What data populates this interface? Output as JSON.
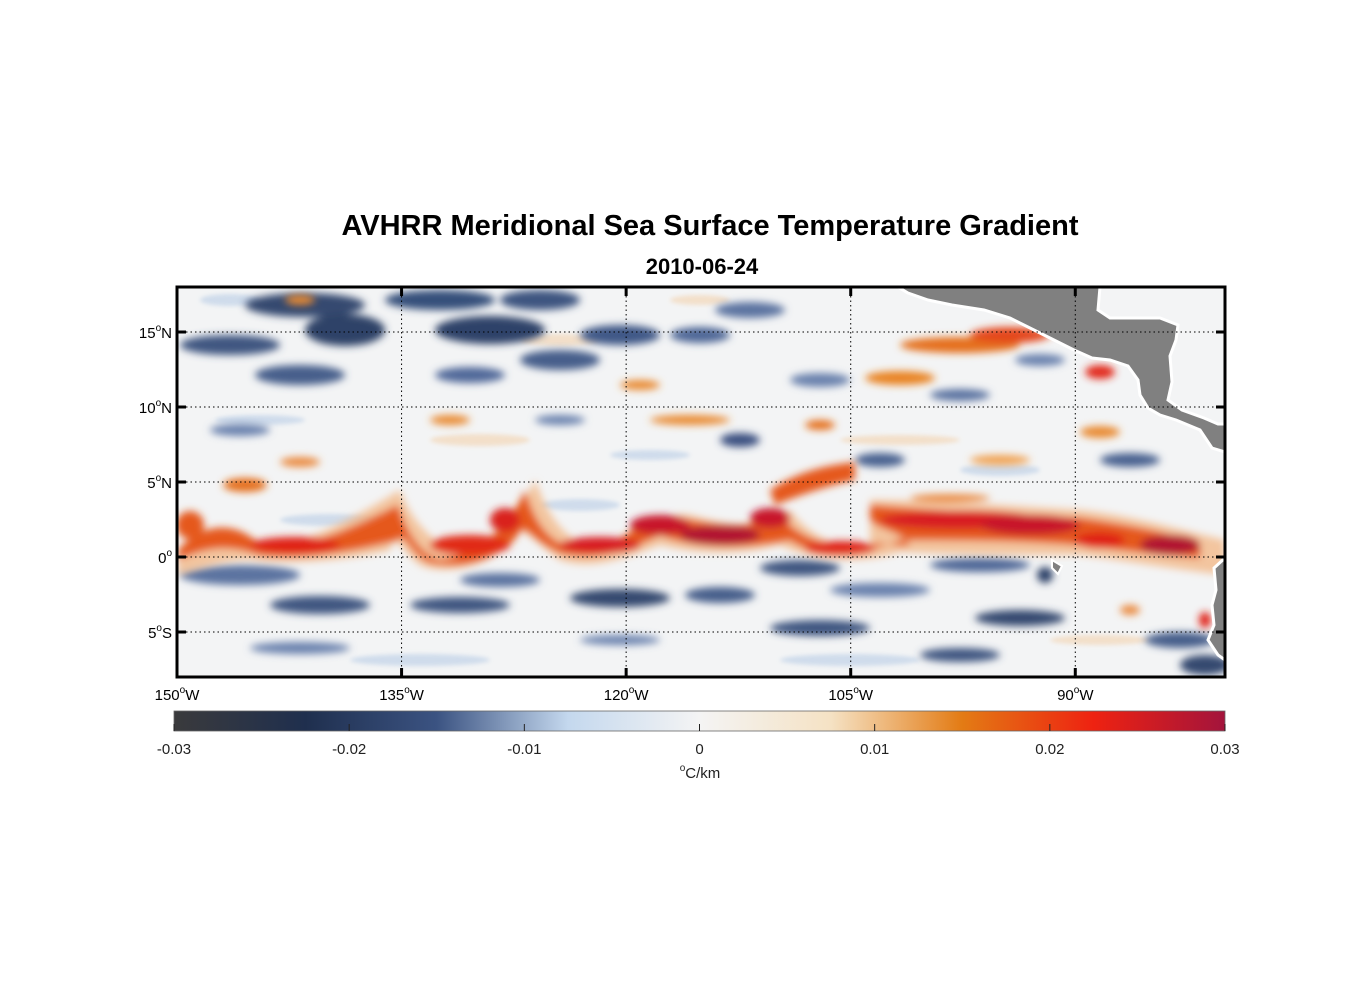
{
  "chart_data": {
    "type": "heatmap",
    "title": "AVHRR Meridional Sea Surface Temperature Gradient",
    "subtitle": "2010-06-24",
    "x_range_deg": [
      -150,
      -80
    ],
    "y_range_deg": [
      -8,
      18
    ],
    "x_ticks": [
      {
        "value": -150,
        "num": "150",
        "deg": "o",
        "hemi": "W"
      },
      {
        "value": -135,
        "num": "135",
        "deg": "o",
        "hemi": "W"
      },
      {
        "value": -120,
        "num": "120",
        "deg": "o",
        "hemi": "W"
      },
      {
        "value": -105,
        "num": "105",
        "deg": "o",
        "hemi": "W"
      },
      {
        "value": -90,
        "num": "90",
        "deg": "o",
        "hemi": "W"
      }
    ],
    "y_ticks": [
      {
        "value": 15,
        "num": "15",
        "deg": "o",
        "hemi": "N"
      },
      {
        "value": 10,
        "num": "10",
        "deg": "o",
        "hemi": "N"
      },
      {
        "value": 5,
        "num": "5",
        "deg": "o",
        "hemi": "N"
      },
      {
        "value": 0,
        "num": "0",
        "deg": "o",
        "hemi": ""
      },
      {
        "value": -5,
        "num": "5",
        "deg": "o",
        "hemi": "S"
      }
    ],
    "colorbar": {
      "range": [
        -0.03,
        0.03
      ],
      "ticks": [
        "-0.03",
        "-0.02",
        "-0.01",
        "0",
        "0.01",
        "0.02",
        "0.03"
      ],
      "tick_values": [
        -0.03,
        -0.02,
        -0.01,
        0,
        0.01,
        0.02,
        0.03
      ],
      "unit_deg": "o",
      "unit_text": "C/km",
      "colors": [
        "#3a3a3c",
        "#1f2f4e",
        "#3b5382",
        "#c4d8ee",
        "#f4f4f4",
        "#f5e2c4",
        "#e37b14",
        "#ee2211",
        "#a3143c"
      ]
    },
    "land_color": "#808080",
    "features": [
      {
        "name": "equatorial-front-trough-1",
        "lon_start": -150,
        "lon_end": -135,
        "type": "positive-band"
      },
      {
        "name": "equatorial-front-trough-2",
        "lon_start": -135,
        "lon_end": -123,
        "type": "positive-band"
      },
      {
        "name": "equatorial-front-trough-3",
        "lon_start": -123,
        "lon_end": -108,
        "type": "positive-band"
      },
      {
        "name": "equatorial-front-trough-4",
        "lon_start": -108,
        "lon_end": -80,
        "type": "positive-band"
      }
    ]
  }
}
